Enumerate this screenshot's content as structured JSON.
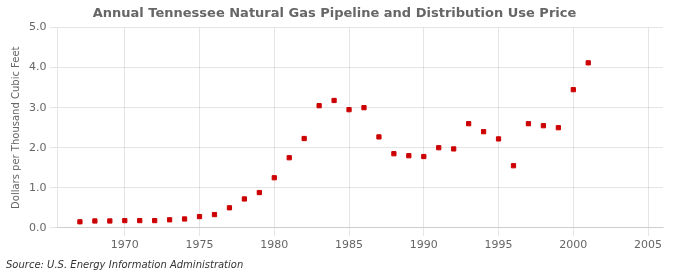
{
  "chart_data": {
    "type": "scatter",
    "title": "Annual Tennessee Natural Gas Pipeline and Distribution Use Price",
    "ylabel": "Dollars per Thousand Cubic Feet",
    "annotations": [
      "Source: U.S. Energy Information Administration"
    ],
    "x": [
      1967,
      1968,
      1969,
      1970,
      1971,
      1972,
      1973,
      1974,
      1975,
      1976,
      1977,
      1978,
      1979,
      1980,
      1981,
      1982,
      1983,
      1984,
      1985,
      1986,
      1987,
      1988,
      1989,
      1990,
      1991,
      1992,
      1993,
      1994,
      1995,
      1996,
      1997,
      1998,
      1999,
      2000,
      2001
    ],
    "values": [
      0.15,
      0.17,
      0.17,
      0.18,
      0.18,
      0.18,
      0.2,
      0.22,
      0.28,
      0.33,
      0.5,
      0.72,
      0.88,
      1.25,
      1.75,
      2.23,
      3.05,
      3.18,
      2.95,
      3.0,
      2.27,
      1.85,
      1.8,
      1.78,
      2.0,
      1.97,
      2.6,
      2.4,
      2.22,
      1.55,
      2.6,
      2.55,
      2.5,
      3.45,
      4.12
    ],
    "color": "#cc0000",
    "marker": "square",
    "xlim": [
      1965.5,
      2006
    ],
    "ylim": [
      0.0,
      5.0
    ],
    "xticks": [
      1970,
      1975,
      1980,
      1985,
      1990,
      1995,
      2000,
      2005
    ],
    "yticks": [
      {
        "value": 0.0,
        "label": "0.0"
      },
      {
        "value": 1.0,
        "label": "1.0"
      },
      {
        "value": 2.0,
        "label": "2.0"
      },
      {
        "value": 3.0,
        "label": "3.0"
      },
      {
        "value": 4.0,
        "label": "4.0"
      },
      {
        "value": 5.0,
        "label": "5.0"
      }
    ],
    "grid": true
  }
}
